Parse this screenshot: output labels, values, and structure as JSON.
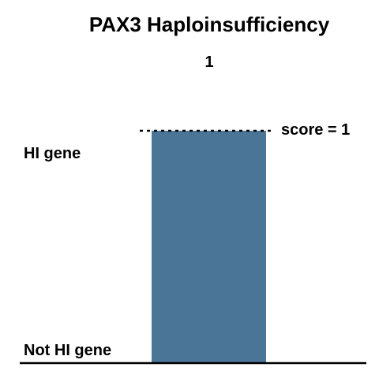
{
  "chart_data": {
    "type": "bar",
    "title": "PAX3 Haploinsufficiency",
    "categories": [
      ""
    ],
    "values": [
      1
    ],
    "value_label": "1",
    "ylim": [
      0,
      1
    ],
    "y_tick_labels": [
      "Not HI gene",
      "HI gene"
    ],
    "reference_line": {
      "value": 1,
      "label": "score = 1",
      "style": "dotted"
    },
    "xlabel": "",
    "ylabel": "",
    "grid": false,
    "bar_color": "#4a7597"
  }
}
